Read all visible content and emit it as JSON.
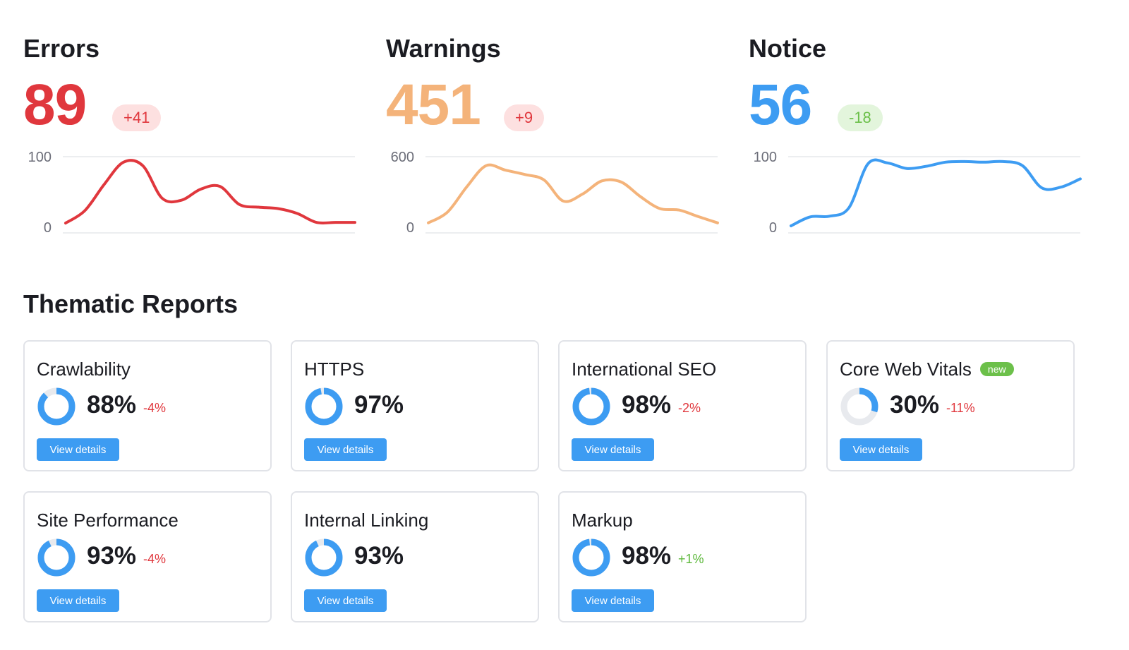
{
  "metrics": [
    {
      "title": "Errors",
      "value": "89",
      "delta": "+41",
      "axis_top": "100",
      "axis_bottom": "0",
      "color": "#e0373d",
      "delta_bg": "#fde0e0",
      "delta_color": "#e0373d",
      "trend": [
        4,
        22,
        60,
        92,
        87,
        40,
        37,
        53,
        57,
        31,
        27,
        25,
        18,
        5,
        5,
        5
      ]
    },
    {
      "title": "Warnings",
      "value": "451",
      "delta": "+9",
      "axis_top": "600",
      "axis_bottom": "0",
      "color": "#f4b37a",
      "delta_bg": "#fde0e0",
      "delta_color": "#e0373d",
      "trend": [
        26,
        120,
        340,
        522,
        483,
        446,
        398,
        215,
        276,
        390,
        380,
        253,
        150,
        137,
        80,
        26
      ]
    },
    {
      "title": "Notice",
      "value": "56",
      "delta": "-18",
      "axis_top": "100",
      "axis_bottom": "0",
      "color": "#3d9cf2",
      "delta_bg": "#e3f5dc",
      "delta_color": "#6cc04a",
      "trend": [
        0,
        13,
        14,
        26,
        90,
        91,
        83,
        86,
        92,
        93,
        92,
        93,
        87,
        55,
        56,
        68
      ]
    }
  ],
  "thematic": {
    "title": "Thematic Reports",
    "button_label": "View details",
    "new_label": "new",
    "cards": [
      {
        "name": "Crawlability",
        "pct": "88%",
        "value": 88,
        "delta": "-4%",
        "trend": "neg",
        "is_new": false
      },
      {
        "name": "HTTPS",
        "pct": "97%",
        "value": 97,
        "delta": "",
        "trend": "",
        "is_new": false
      },
      {
        "name": "International SEO",
        "pct": "98%",
        "value": 98,
        "delta": "-2%",
        "trend": "neg",
        "is_new": false
      },
      {
        "name": "Core Web Vitals",
        "pct": "30%",
        "value": 30,
        "delta": "-11%",
        "trend": "neg",
        "is_new": true
      },
      {
        "name": "Site Performance",
        "pct": "93%",
        "value": 93,
        "delta": "-4%",
        "trend": "neg",
        "is_new": false
      },
      {
        "name": "Internal Linking",
        "pct": "93%",
        "value": 93,
        "delta": "",
        "trend": "",
        "is_new": false
      },
      {
        "name": "Markup",
        "pct": "98%",
        "value": 98,
        "delta": "+1%",
        "trend": "pos",
        "is_new": false
      }
    ]
  },
  "colors": {
    "ring": "#3d9cf2",
    "ring_track": "#e8eaee",
    "button": "#3d9cf2"
  }
}
